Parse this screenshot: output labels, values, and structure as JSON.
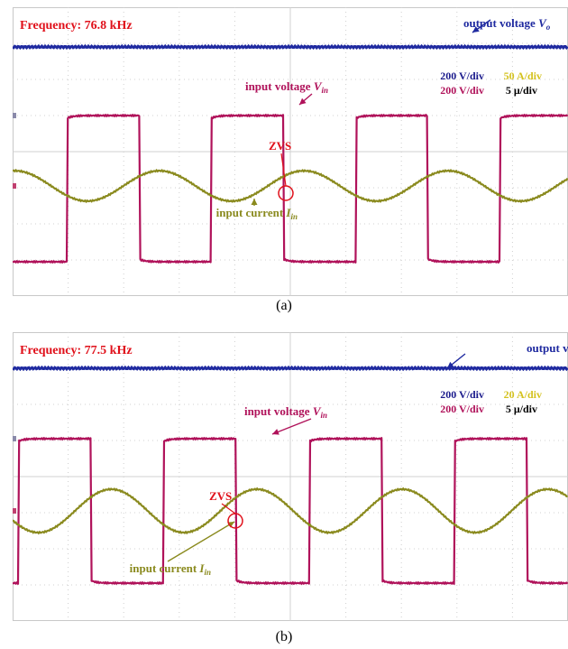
{
  "chart_data": [
    {
      "type": "line",
      "panel_label": "(a)",
      "frequency_label": "Frequency: 76.8 kHz",
      "scales": [
        {
          "text": "200 V/div",
          "color": "#1a1a8c"
        },
        {
          "text": "50 A/div",
          "color": "#d4c21e"
        },
        {
          "text": "200 V/div",
          "color": "#b0125a"
        },
        {
          "text": "5 μ/div",
          "color": "#000000"
        }
      ],
      "grid": true,
      "divisions": {
        "x": 10,
        "y": 8
      },
      "series": [
        {
          "name": "output voltage V",
          "subscript": "o",
          "color": "#1f2aa0",
          "waveform": "dc",
          "level_div": 6.9
        },
        {
          "name": "input voltage V",
          "subscript": "in",
          "color": "#b0125a",
          "waveform": "square",
          "high_div": 5.0,
          "low_div": 0.95,
          "period_div": 2.6,
          "phase_div": 0.98
        },
        {
          "name": "input current I",
          "subscript": "in",
          "color": "#8a8a1e",
          "waveform": "sine",
          "center_div": 3.05,
          "amplitude_div": 0.42,
          "period_div": 2.6,
          "phase_div": 0.98
        }
      ],
      "annotations": [
        {
          "text": "ZVS",
          "color": "#e0101a"
        }
      ]
    },
    {
      "type": "line",
      "panel_label": "(b)",
      "frequency_label": "Frequency: 77.5 kHz",
      "scales": [
        {
          "text": "200 V/div",
          "color": "#1a1a8c"
        },
        {
          "text": "20 A/div",
          "color": "#d4c21e"
        },
        {
          "text": "200 V/div",
          "color": "#b0125a"
        },
        {
          "text": "5 μ/div",
          "color": "#000000"
        }
      ],
      "grid": true,
      "divisions": {
        "x": 10,
        "y": 8
      },
      "series": [
        {
          "name": "output voltage V",
          "subscript": "o",
          "color": "#1f2aa0",
          "waveform": "dc",
          "level_div": 7.0
        },
        {
          "name": "input voltage V",
          "subscript": "in",
          "color": "#b0125a",
          "waveform": "square",
          "high_div": 5.05,
          "low_div": 1.05,
          "period_div": 2.62,
          "phase_div": 0.1
        },
        {
          "name": "input current I",
          "subscript": "in",
          "color": "#8a8a1e",
          "waveform": "sine",
          "center_div": 3.05,
          "amplitude_div": 0.6,
          "period_div": 2.62,
          "phase_div": 0.1
        }
      ],
      "annotations": [
        {
          "text": "ZVS",
          "color": "#e0101a"
        }
      ]
    }
  ]
}
